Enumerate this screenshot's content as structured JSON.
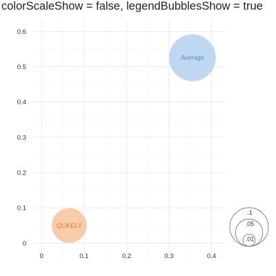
{
  "title": "colorScaleShow = false, legendBubblesShow = true",
  "chart_data": {
    "type": "scatter",
    "title": "colorScaleShow = false, legendBubblesShow = true",
    "xlabel": "",
    "ylabel": "",
    "xlim": [
      -0.02,
      0.43
    ],
    "ylim": [
      -0.05,
      0.63
    ],
    "x_ticks": [
      0,
      0.1,
      0.2,
      0.3,
      0.4
    ],
    "x_tick_labels": [
      "0",
      "0.1",
      "0.2",
      "0.3",
      "0.4"
    ],
    "y_ticks": [
      0,
      0.1,
      0.2,
      0.3,
      0.4,
      0.5,
      0.6
    ],
    "y_tick_labels": [
      "0",
      "0.1",
      "0.2",
      "0.3",
      "0.4",
      "0.5",
      "0.6"
    ],
    "grid": true,
    "points": [
      {
        "label": "QLIKELY",
        "x": 0.065,
        "y": 0.05,
        "size": 0.055,
        "fill": "#f8c8a6",
        "text_color": "#e8762d"
      },
      {
        "label": "Average",
        "x": 0.355,
        "y": 0.525,
        "size": 0.1,
        "fill": "#bcd5ee",
        "text_color": "#4a90d9"
      }
    ],
    "size_legend": {
      "placement": "bottom-right",
      "values": [
        0.1,
        0.05,
        0.01
      ],
      "labels": [
        ".1",
        ".05",
        ".01"
      ]
    }
  }
}
